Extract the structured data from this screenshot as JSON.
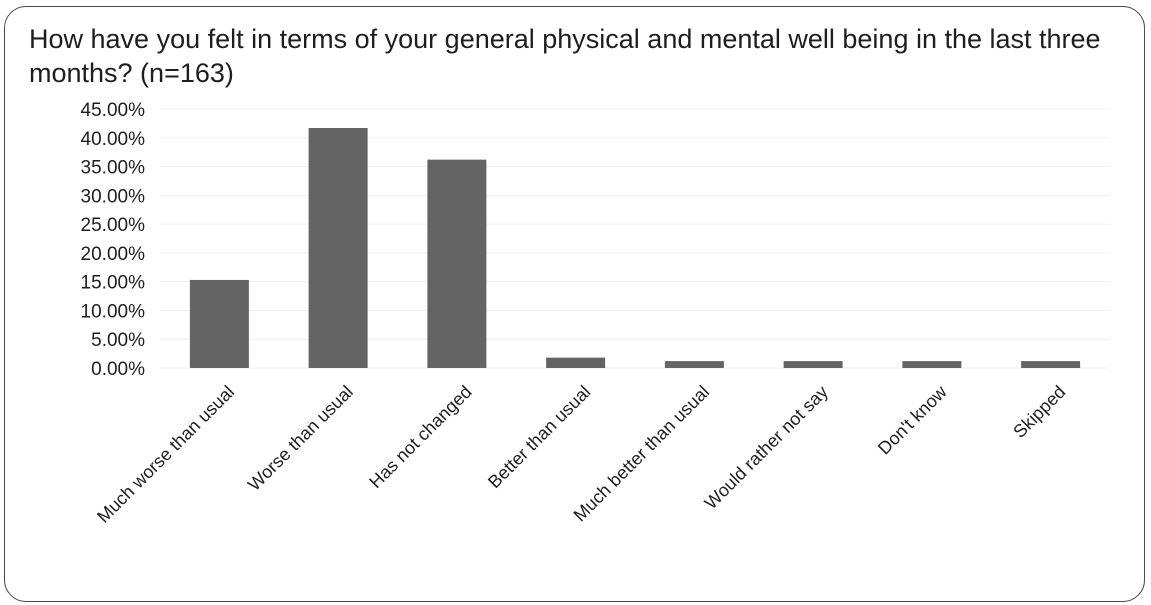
{
  "chart_data": {
    "type": "bar",
    "title": "How have you felt in terms of your general physical and mental well being in the last three months? (n=163)",
    "xlabel": "",
    "ylabel": "",
    "categories": [
      "Much worse than usual",
      "Worse than usual",
      "Has not changed",
      "Better than usual",
      "Much better than usual",
      "Would rather not say",
      "Don't know",
      "Skipped"
    ],
    "values": [
      15.3,
      41.7,
      36.2,
      1.8,
      1.2,
      1.2,
      1.2,
      1.2
    ],
    "yticks": [
      "0.00%",
      "5.00%",
      "10.00%",
      "15.00%",
      "20.00%",
      "25.00%",
      "30.00%",
      "35.00%",
      "40.00%",
      "45.00%"
    ],
    "ylim": [
      0,
      45
    ],
    "grid": true,
    "legend": "none",
    "colors": {
      "bar": "#646464",
      "grid": "#f0f0f0",
      "frame": "#4a4a4a",
      "text": "#1e1e1e"
    }
  }
}
